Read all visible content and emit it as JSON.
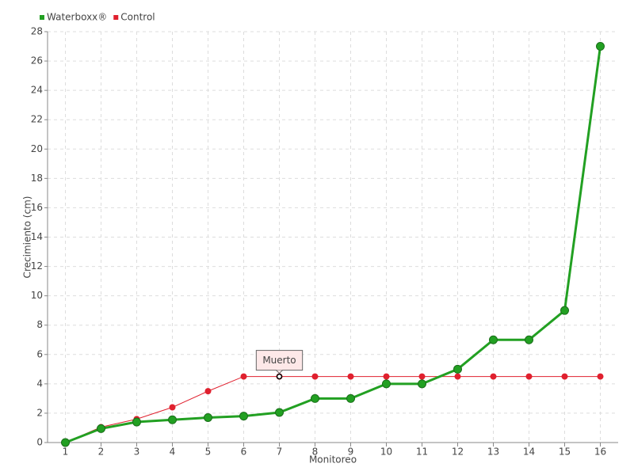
{
  "chart_data": {
    "type": "line",
    "xlabel": "Monitoreo",
    "ylabel": "Crecimiento (cm)",
    "x": [
      1,
      2,
      3,
      4,
      5,
      6,
      7,
      8,
      9,
      10,
      11,
      12,
      13,
      14,
      15,
      16
    ],
    "xlim": [
      0.5,
      16.5
    ],
    "xticks": [
      1,
      2,
      3,
      4,
      5,
      6,
      7,
      8,
      9,
      10,
      11,
      12,
      13,
      14,
      15,
      16
    ],
    "ylim": [
      0,
      28
    ],
    "yticks": [
      0,
      2,
      4,
      6,
      8,
      10,
      12,
      14,
      16,
      18,
      20,
      22,
      24,
      26,
      28
    ],
    "grid": true,
    "legend": "top-left",
    "series": [
      {
        "name": "Waterboxx®",
        "color": "#22a022",
        "values": [
          0,
          0.95,
          1.4,
          1.55,
          1.7,
          1.8,
          2.05,
          3,
          3,
          4,
          4,
          5,
          7,
          7,
          9,
          27
        ]
      },
      {
        "name": "Control",
        "color": "#e0202e",
        "values": [
          0,
          1.05,
          1.6,
          2.4,
          3.5,
          4.5,
          4.5,
          4.5,
          4.5,
          4.5,
          4.5,
          4.5,
          4.5,
          4.5,
          4.5,
          4.5
        ]
      }
    ],
    "annotations": [
      {
        "text": "Muerto",
        "x": 7,
        "y": 4.5
      }
    ]
  }
}
